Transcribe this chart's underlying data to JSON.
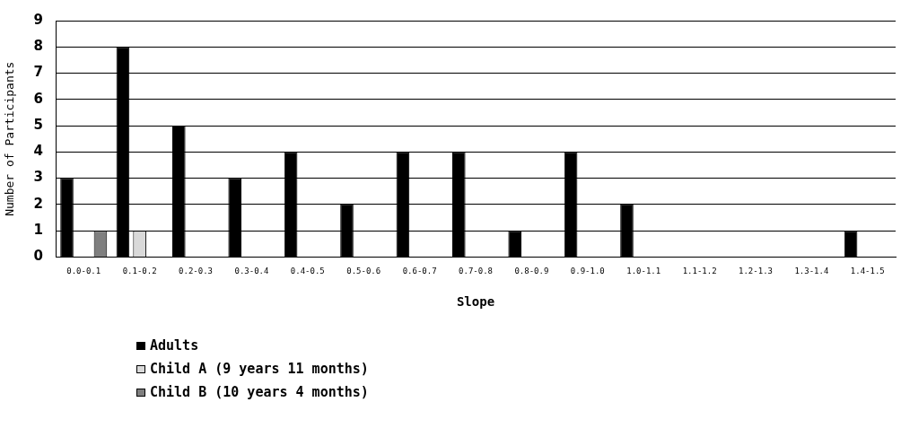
{
  "chart_data": {
    "type": "bar",
    "xlabel": "Slope",
    "ylabel": "Number of Participants",
    "categories": [
      "0.0-0.1",
      "0.1-0.2",
      "0.2-0.3",
      "0.3-0.4",
      "0.4-0.5",
      "0.5-0.6",
      "0.6-0.7",
      "0.7-0.8",
      "0.8-0.9",
      "0.9-1.0",
      "1.0-1.1",
      "1.1-1.2",
      "1.2-1.3",
      "1.3-1.4",
      "1.4-1.5"
    ],
    "series": [
      {
        "name": "Adults",
        "color": "#000000",
        "values": [
          3,
          8,
          5,
          3,
          4,
          2,
          4,
          4,
          1,
          4,
          2,
          0,
          0,
          0,
          1
        ]
      },
      {
        "name": "Child A (9 years 11 months)",
        "color": "#d9d9d9",
        "values": [
          0,
          1,
          0,
          0,
          0,
          0,
          0,
          0,
          0,
          0,
          0,
          0,
          0,
          0,
          0
        ]
      },
      {
        "name": "Child B (10 years 4 months)",
        "color": "#7f7f7f",
        "values": [
          1,
          0,
          0,
          0,
          0,
          0,
          0,
          0,
          0,
          0,
          0,
          0,
          0,
          0,
          0
        ]
      }
    ],
    "ylim": [
      0,
      9
    ],
    "yticks": [
      0,
      1,
      2,
      3,
      4,
      5,
      6,
      7,
      8,
      9
    ],
    "grid": "y",
    "legend": "bottom left"
  }
}
